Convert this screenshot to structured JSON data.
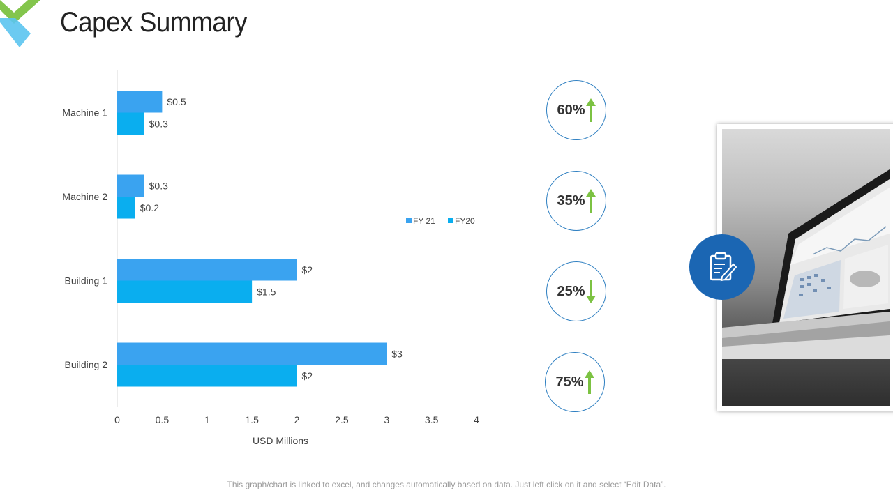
{
  "header": {
    "title": "Capex Summary"
  },
  "chart_data": {
    "type": "bar",
    "orientation": "horizontal",
    "categories": [
      "Machine 1",
      "Machine 2",
      "Building 1",
      "Building 2"
    ],
    "series": [
      {
        "name": "FY 21",
        "values": [
          0.5,
          0.3,
          2,
          3
        ],
        "labels": [
          "$0.5",
          "$0.3",
          "$2",
          "$3"
        ],
        "color": "#3aa3f0"
      },
      {
        "name": "FY20",
        "values": [
          0.3,
          0.2,
          1.5,
          2
        ],
        "labels": [
          "$0.3",
          "$0.2",
          "$1.5",
          "$2"
        ],
        "color": "#0aaeef"
      }
    ],
    "xticks": [
      "0",
      "0.5",
      "1",
      "1.5",
      "2",
      "2.5",
      "3",
      "3.5",
      "4"
    ],
    "xlim": [
      0,
      4
    ],
    "xlabel": "USD Millions",
    "ylabel": "",
    "title": "",
    "legend": "right"
  },
  "kpis": [
    {
      "value": "60%",
      "direction": "up"
    },
    {
      "value": "35%",
      "direction": "up"
    },
    {
      "value": "25%",
      "direction": "down"
    },
    {
      "value": "75%",
      "direction": "up"
    }
  ],
  "colors": {
    "arrow": "#7cc242",
    "circle_border": "#2e7fc1",
    "badge": "#1b66b3",
    "logo_green": "#7cc242",
    "logo_blue": "#5bc4f0"
  },
  "footnote": "This graph/chart is linked to excel, and changes automatically based on data. Just left click on it and select “Edit Data”."
}
